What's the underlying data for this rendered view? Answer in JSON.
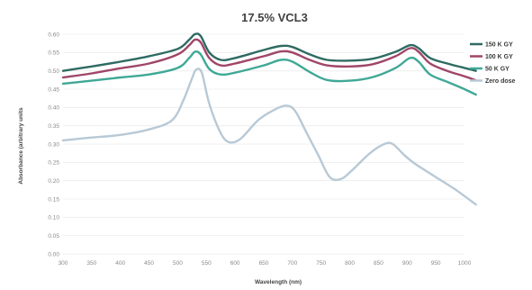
{
  "chart_data": {
    "type": "line",
    "title": "17.5% VCL3",
    "xlabel": "Wavelength (nm)",
    "ylabel": "Absorbance (arbitrary units",
    "xlim": [
      300,
      1000
    ],
    "ylim": [
      0.0,
      0.6
    ],
    "xticks": [
      "300",
      "350",
      "400",
      "450",
      "500",
      "550",
      "600",
      "650",
      "700",
      "750",
      "800",
      "850",
      "900",
      "950",
      "1000"
    ],
    "yticks": [
      "0.00",
      "0.05",
      "0.10",
      "0.15",
      "0.20",
      "0.25",
      "0.30",
      "0.35",
      "0.40",
      "0.45",
      "0.50",
      "0.55",
      "0.60"
    ],
    "grid": "horizontal",
    "legend_position": "right",
    "series": [
      {
        "name": "150 K GY",
        "color": "#2e6b63",
        "points": [
          [
            300,
            0.5
          ],
          [
            350,
            0.512
          ],
          [
            400,
            0.525
          ],
          [
            450,
            0.54
          ],
          [
            500,
            0.56
          ],
          [
            520,
            0.585
          ],
          [
            530,
            0.6
          ],
          [
            540,
            0.595
          ],
          [
            555,
            0.55
          ],
          [
            575,
            0.53
          ],
          [
            600,
            0.535
          ],
          [
            650,
            0.557
          ],
          [
            680,
            0.568
          ],
          [
            700,
            0.565
          ],
          [
            730,
            0.545
          ],
          [
            760,
            0.53
          ],
          [
            800,
            0.528
          ],
          [
            840,
            0.533
          ],
          [
            880,
            0.552
          ],
          [
            905,
            0.57
          ],
          [
            920,
            0.562
          ],
          [
            940,
            0.535
          ],
          [
            970,
            0.52
          ],
          [
            1000,
            0.508
          ],
          [
            1020,
            0.5
          ]
        ]
      },
      {
        "name": "100 K GY",
        "color": "#a04668",
        "points": [
          [
            300,
            0.482
          ],
          [
            350,
            0.493
          ],
          [
            400,
            0.507
          ],
          [
            450,
            0.52
          ],
          [
            500,
            0.545
          ],
          [
            520,
            0.57
          ],
          [
            530,
            0.585
          ],
          [
            540,
            0.578
          ],
          [
            555,
            0.535
          ],
          [
            575,
            0.515
          ],
          [
            600,
            0.52
          ],
          [
            650,
            0.54
          ],
          [
            680,
            0.553
          ],
          [
            700,
            0.55
          ],
          [
            730,
            0.53
          ],
          [
            760,
            0.515
          ],
          [
            800,
            0.512
          ],
          [
            840,
            0.518
          ],
          [
            880,
            0.54
          ],
          [
            905,
            0.562
          ],
          [
            920,
            0.552
          ],
          [
            940,
            0.52
          ],
          [
            970,
            0.5
          ],
          [
            1000,
            0.485
          ],
          [
            1020,
            0.474
          ]
        ]
      },
      {
        "name": "50 K GY",
        "color": "#3fa896",
        "points": [
          [
            300,
            0.465
          ],
          [
            350,
            0.473
          ],
          [
            400,
            0.482
          ],
          [
            450,
            0.49
          ],
          [
            500,
            0.508
          ],
          [
            520,
            0.535
          ],
          [
            530,
            0.552
          ],
          [
            540,
            0.545
          ],
          [
            555,
            0.505
          ],
          [
            575,
            0.49
          ],
          [
            600,
            0.495
          ],
          [
            650,
            0.515
          ],
          [
            680,
            0.53
          ],
          [
            700,
            0.525
          ],
          [
            730,
            0.497
          ],
          [
            760,
            0.475
          ],
          [
            800,
            0.473
          ],
          [
            840,
            0.483
          ],
          [
            880,
            0.508
          ],
          [
            905,
            0.535
          ],
          [
            920,
            0.525
          ],
          [
            940,
            0.49
          ],
          [
            970,
            0.47
          ],
          [
            1000,
            0.45
          ],
          [
            1020,
            0.435
          ]
        ]
      },
      {
        "name": "Zero dose",
        "color": "#b8c9d6",
        "points": [
          [
            300,
            0.31
          ],
          [
            350,
            0.318
          ],
          [
            400,
            0.325
          ],
          [
            450,
            0.34
          ],
          [
            490,
            0.365
          ],
          [
            510,
            0.42
          ],
          [
            525,
            0.48
          ],
          [
            532,
            0.503
          ],
          [
            542,
            0.495
          ],
          [
            555,
            0.41
          ],
          [
            575,
            0.33
          ],
          [
            590,
            0.305
          ],
          [
            610,
            0.315
          ],
          [
            640,
            0.365
          ],
          [
            670,
            0.395
          ],
          [
            690,
            0.405
          ],
          [
            705,
            0.39
          ],
          [
            725,
            0.33
          ],
          [
            745,
            0.27
          ],
          [
            765,
            0.21
          ],
          [
            785,
            0.205
          ],
          [
            805,
            0.23
          ],
          [
            835,
            0.275
          ],
          [
            860,
            0.3
          ],
          [
            875,
            0.3
          ],
          [
            895,
            0.27
          ],
          [
            915,
            0.245
          ],
          [
            950,
            0.21
          ],
          [
            985,
            0.175
          ],
          [
            1020,
            0.135
          ]
        ]
      }
    ]
  }
}
